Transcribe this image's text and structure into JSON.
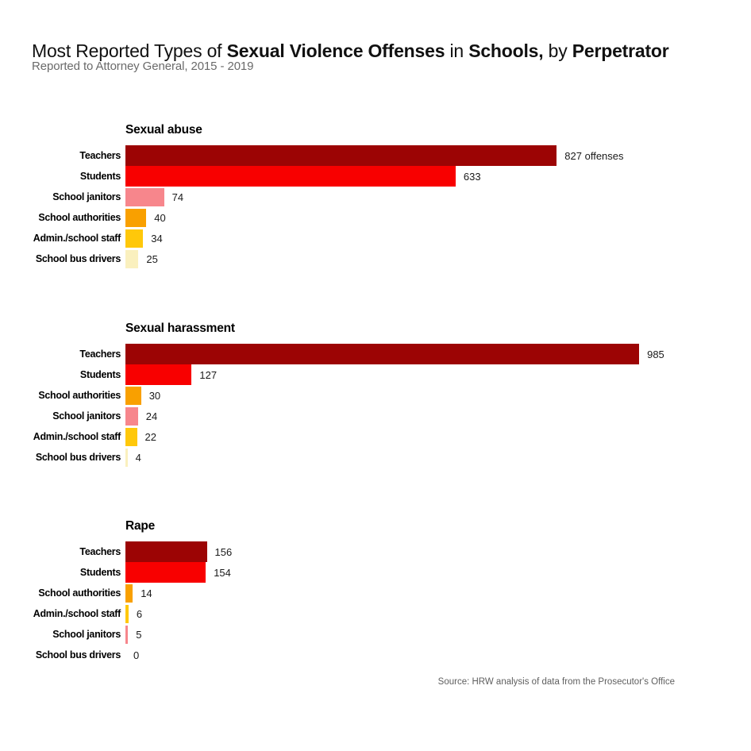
{
  "header": {
    "title_segments": [
      {
        "text": "Most Reported Types of ",
        "bold": false
      },
      {
        "text": "Sexual Violence Offenses",
        "bold": true
      },
      {
        "text": " in ",
        "bold": false
      },
      {
        "text": "Schools,",
        "bold": true
      },
      {
        "text": " by ",
        "bold": false
      },
      {
        "text": "Perpetrator",
        "bold": true
      }
    ],
    "subtitle": "Reported to Attorney General, 2015 - 2019"
  },
  "source": "Source: HRW analysis of data from the Prosecutor's Office",
  "colors": {
    "teachers": "#9C0404",
    "students": "#F80000",
    "school_janitors": "#F7868C",
    "school_authorities": "#F9A000",
    "admin_school_staff": "#FFC80A",
    "school_bus_drivers": "#FAF0BE"
  },
  "chart_data": [
    {
      "type": "bar",
      "title": "Sexual abuse",
      "categories": [
        "Teachers",
        "Students",
        "School janitors",
        "School authorities",
        "Admin./school staff",
        "School bus drivers"
      ],
      "values": [
        827,
        633,
        74,
        40,
        34,
        25
      ],
      "value_labels": [
        "827 offenses",
        "633",
        "74",
        "40",
        "34",
        "25"
      ],
      "bar_colors": [
        "#9C0404",
        "#F80000",
        "#F7868C",
        "#F9A000",
        "#FFC80A",
        "#FAF0BE"
      ],
      "xlim": [
        0,
        1000
      ],
      "orientation": "horizontal",
      "grid": false,
      "legend": false
    },
    {
      "type": "bar",
      "title": "Sexual harassment",
      "categories": [
        "Teachers",
        "Students",
        "School authorities",
        "School janitors",
        "Admin./school staff",
        "School bus drivers"
      ],
      "values": [
        985,
        127,
        30,
        24,
        22,
        4
      ],
      "value_labels": [
        "985",
        "127",
        "30",
        "24",
        "22",
        "4"
      ],
      "bar_colors": [
        "#9C0404",
        "#F80000",
        "#F9A000",
        "#F7868C",
        "#FFC80A",
        "#FAF0BE"
      ],
      "xlim": [
        0,
        1000
      ],
      "orientation": "horizontal",
      "grid": false,
      "legend": false
    },
    {
      "type": "bar",
      "title": "Rape",
      "categories": [
        "Teachers",
        "Students",
        "School authorities",
        "Admin./school staff",
        "School janitors",
        "School bus drivers"
      ],
      "values": [
        156,
        154,
        14,
        6,
        5,
        0
      ],
      "value_labels": [
        "156",
        "154",
        "14",
        "6",
        "5",
        "0"
      ],
      "bar_colors": [
        "#9C0404",
        "#F80000",
        "#F9A000",
        "#FFC80A",
        "#F7868C",
        "#FAF0BE"
      ],
      "xlim": [
        0,
        1000
      ],
      "orientation": "horizontal",
      "grid": false,
      "legend": false
    }
  ]
}
